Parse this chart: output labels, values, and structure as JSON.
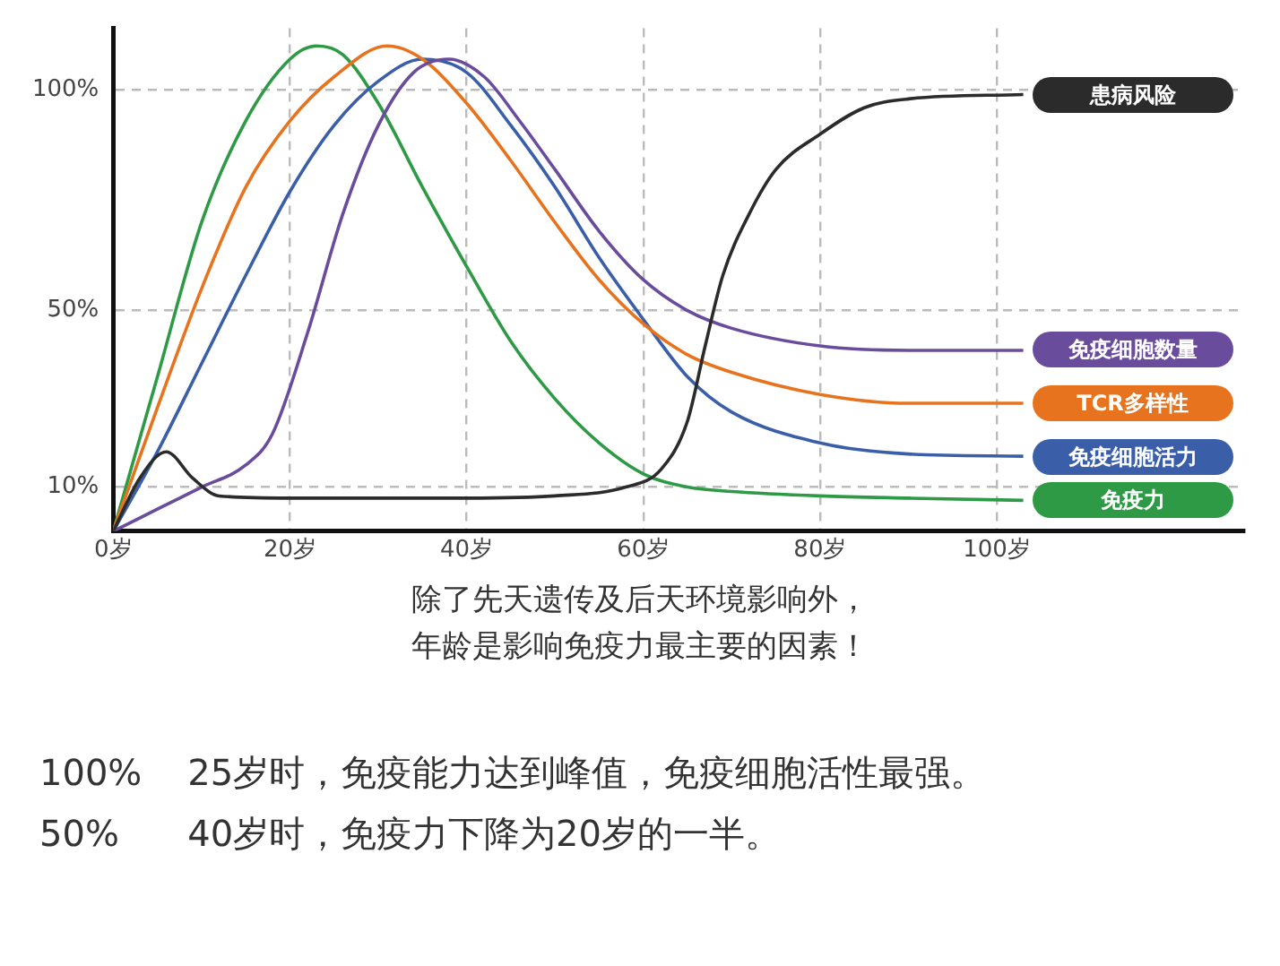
{
  "chart_data": {
    "type": "line",
    "x": [
      0,
      5,
      10,
      15,
      20,
      25,
      30,
      35,
      40,
      45,
      50,
      55,
      60,
      65,
      70,
      80,
      90,
      103
    ],
    "xlim": [
      0,
      128
    ],
    "xticks": [
      {
        "value": 0,
        "label": "0岁"
      },
      {
        "value": 20,
        "label": "20岁"
      },
      {
        "value": 40,
        "label": "40岁"
      },
      {
        "value": 60,
        "label": "60岁"
      },
      {
        "value": 80,
        "label": "80岁"
      },
      {
        "value": 100,
        "label": "100岁"
      }
    ],
    "ylim": [
      0,
      114
    ],
    "yticks": [
      {
        "value": 10,
        "label": "10%"
      },
      {
        "value": 50,
        "label": "50%"
      },
      {
        "value": 100,
        "label": "100%"
      }
    ],
    "grid": true,
    "legend": false,
    "marker": "none",
    "line_style": "solid",
    "series": [
      {
        "name": "患病风险",
        "color": "#2b2b2b",
        "x": [
          0,
          3,
          6,
          9,
          12,
          20,
          40,
          50,
          58,
          62,
          65,
          67,
          69,
          72,
          75,
          80,
          85,
          90,
          103
        ],
        "values": [
          0,
          12,
          18,
          12,
          8,
          7.5,
          7.5,
          8,
          10,
          14,
          25,
          42,
          58,
          72,
          82,
          90,
          96,
          98,
          99
        ]
      },
      {
        "name": "免疫细胞数量",
        "color": "#6a4c9c",
        "x": [
          0,
          5,
          10,
          15,
          18,
          22,
          26,
          30,
          34,
          38,
          42,
          46,
          50,
          55,
          60,
          65,
          70,
          80,
          90,
          103
        ],
        "values": [
          0,
          5,
          10,
          15,
          22,
          45,
          72,
          92,
          104,
          107,
          103,
          93,
          82,
          68,
          57,
          50,
          46,
          42,
          41,
          41
        ]
      },
      {
        "name": "TCR多样性",
        "color": "#e8731e",
        "x": [
          0,
          5,
          10,
          15,
          20,
          25,
          31,
          35,
          40,
          45,
          50,
          55,
          60,
          65,
          70,
          80,
          90,
          103
        ],
        "values": [
          0,
          28,
          55,
          78,
          93,
          103,
          110,
          107,
          97,
          84,
          70,
          57,
          47,
          40,
          36,
          31,
          29,
          29
        ]
      },
      {
        "name": "免疫细胞活力",
        "color": "#3a5fa8",
        "values": [
          0,
          18,
          38,
          58,
          77,
          92,
          102,
          107,
          104,
          92,
          78,
          62,
          48,
          35,
          27,
          20,
          17.5,
          17
        ]
      },
      {
        "name": "免疫力",
        "color": "#2e9a45",
        "x": [
          0,
          5,
          10,
          15,
          20,
          23,
          26,
          30,
          35,
          40,
          45,
          50,
          55,
          60,
          65,
          70,
          80,
          90,
          103
        ],
        "values": [
          0,
          35,
          70,
          93,
          107,
          110,
          108,
          97,
          78,
          60,
          43,
          30,
          20,
          13,
          10,
          9,
          8,
          7.5,
          7
        ]
      }
    ],
    "annotations": [
      "除了先天遗传及后天环境影响外，",
      "年龄是影响免疫力最主要的因素！",
      "100%    25岁时，免疫能力达到峰值，免疫细胞活性最强。",
      "50%      40岁时，免疫力下降为20岁的一半。"
    ]
  }
}
